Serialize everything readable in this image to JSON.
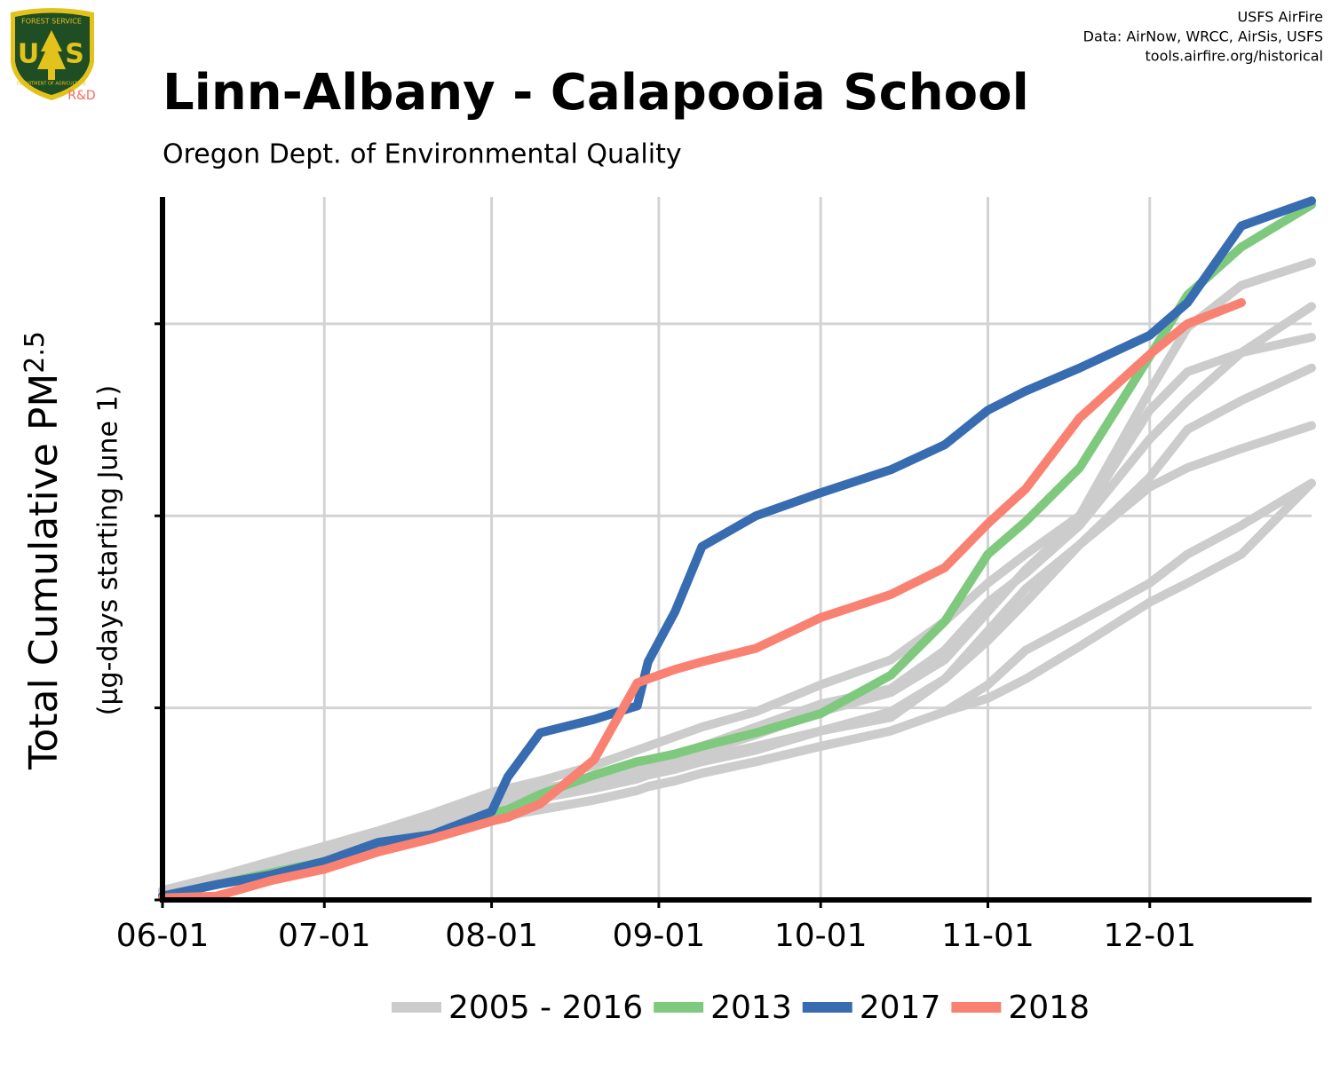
{
  "chart_data": {
    "type": "line",
    "title": "Linn-Albany - Calapooia School",
    "subtitle": "Oregon Dept. of Environmental Quality",
    "credits": [
      "USFS AirFire",
      "Data: AirNow, WRCC, AirSis, USFS",
      "tools.airfire.org/historical"
    ],
    "logo": {
      "top": "FOREST SERVICE",
      "left": "U",
      "right": "S",
      "bottom": "DEPARTMENT OF AGRICULTURE",
      "tag": "R&D"
    },
    "ylabel": "Total Cumulative PM",
    "ylabel_sub": "2.5",
    "ylabel2": "(µg-days starting June 1)",
    "x": [
      0,
      10,
      20,
      30,
      40,
      50,
      61,
      64,
      70,
      80,
      88,
      90,
      95,
      100,
      110,
      122,
      135,
      145,
      153,
      160,
      170,
      183,
      190,
      200,
      213
    ],
    "xlim": [
      0,
      213
    ],
    "xticks": [
      {
        "value": 0,
        "label": "06-01"
      },
      {
        "value": 30,
        "label": "07-01"
      },
      {
        "value": 61,
        "label": "08-01"
      },
      {
        "value": 92,
        "label": "09-01"
      },
      {
        "value": 122,
        "label": "10-01"
      },
      {
        "value": 153,
        "label": "11-01"
      },
      {
        "value": 183,
        "label": "12-01"
      }
    ],
    "ylim": [
      0,
      3.66
    ],
    "yticks": [
      0,
      1,
      2,
      3
    ],
    "grid": true,
    "legend": "bottom",
    "series": [
      {
        "name": "2005 - 2016",
        "color": "#cccccc",
        "values": [
          [
            0.05,
            0.12,
            0.2,
            0.28,
            0.36,
            0.45,
            0.56,
            0.58,
            0.62,
            0.7,
            0.78,
            0.8,
            0.85,
            0.9,
            0.98,
            1.12,
            1.25,
            1.45,
            1.65,
            1.8,
            2.0,
            2.65,
            2.98,
            3.2,
            3.32
          ],
          [
            0.04,
            0.1,
            0.17,
            0.25,
            0.33,
            0.42,
            0.52,
            0.54,
            0.58,
            0.62,
            0.68,
            0.7,
            0.74,
            0.8,
            0.9,
            1.02,
            1.1,
            1.3,
            1.55,
            1.7,
            1.95,
            2.4,
            2.6,
            2.85,
            3.09
          ],
          [
            0.04,
            0.1,
            0.16,
            0.23,
            0.31,
            0.4,
            0.5,
            0.52,
            0.56,
            0.6,
            0.66,
            0.68,
            0.72,
            0.77,
            0.86,
            0.98,
            1.08,
            1.25,
            1.5,
            1.72,
            1.98,
            2.55,
            2.75,
            2.85,
            2.93
          ],
          [
            0.03,
            0.09,
            0.15,
            0.22,
            0.3,
            0.38,
            0.48,
            0.5,
            0.53,
            0.58,
            0.63,
            0.65,
            0.68,
            0.72,
            0.78,
            0.88,
            0.98,
            1.15,
            1.4,
            1.62,
            1.85,
            2.2,
            2.45,
            2.6,
            2.77
          ],
          [
            0.04,
            0.1,
            0.16,
            0.24,
            0.32,
            0.4,
            0.5,
            0.52,
            0.55,
            0.6,
            0.64,
            0.66,
            0.7,
            0.74,
            0.8,
            0.88,
            0.95,
            1.15,
            1.35,
            1.55,
            1.85,
            2.15,
            2.25,
            2.35,
            2.47
          ],
          [
            0.03,
            0.08,
            0.13,
            0.19,
            0.26,
            0.33,
            0.42,
            0.44,
            0.47,
            0.52,
            0.57,
            0.59,
            0.62,
            0.66,
            0.72,
            0.8,
            0.88,
            0.98,
            1.12,
            1.3,
            1.45,
            1.65,
            1.8,
            1.95,
            2.17
          ],
          [
            0.03,
            0.08,
            0.13,
            0.19,
            0.26,
            0.33,
            0.42,
            0.44,
            0.47,
            0.52,
            0.57,
            0.59,
            0.62,
            0.66,
            0.72,
            0.8,
            0.88,
            0.98,
            1.05,
            1.15,
            1.32,
            1.55,
            1.65,
            1.8,
            2.17
          ]
        ]
      },
      {
        "name": "2013",
        "color": "#7fc97f",
        "values": [
          0.02,
          0.08,
          0.14,
          0.2,
          0.27,
          0.33,
          0.45,
          0.47,
          0.55,
          0.65,
          0.72,
          0.73,
          0.76,
          0.8,
          0.87,
          0.97,
          1.17,
          1.45,
          1.8,
          1.97,
          2.25,
          2.83,
          3.15,
          3.4,
          3.62
        ]
      },
      {
        "name": "2017",
        "color": "#386cb0",
        "values": [
          0.02,
          0.08,
          0.13,
          0.2,
          0.3,
          0.34,
          0.46,
          0.64,
          0.87,
          0.94,
          1.01,
          1.24,
          1.5,
          1.84,
          2.0,
          2.12,
          2.24,
          2.37,
          2.55,
          2.65,
          2.77,
          2.94,
          3.11,
          3.51,
          3.64
        ]
      },
      {
        "name": "2018",
        "color": "#f98172",
        "values": [
          0.01,
          0.02,
          0.1,
          0.16,
          0.25,
          0.32,
          0.41,
          0.43,
          0.5,
          0.73,
          1.13,
          1.15,
          1.2,
          1.24,
          1.31,
          1.47,
          1.59,
          1.73,
          1.96,
          2.14,
          2.51,
          2.84,
          3.0,
          3.11,
          null
        ]
      }
    ]
  }
}
